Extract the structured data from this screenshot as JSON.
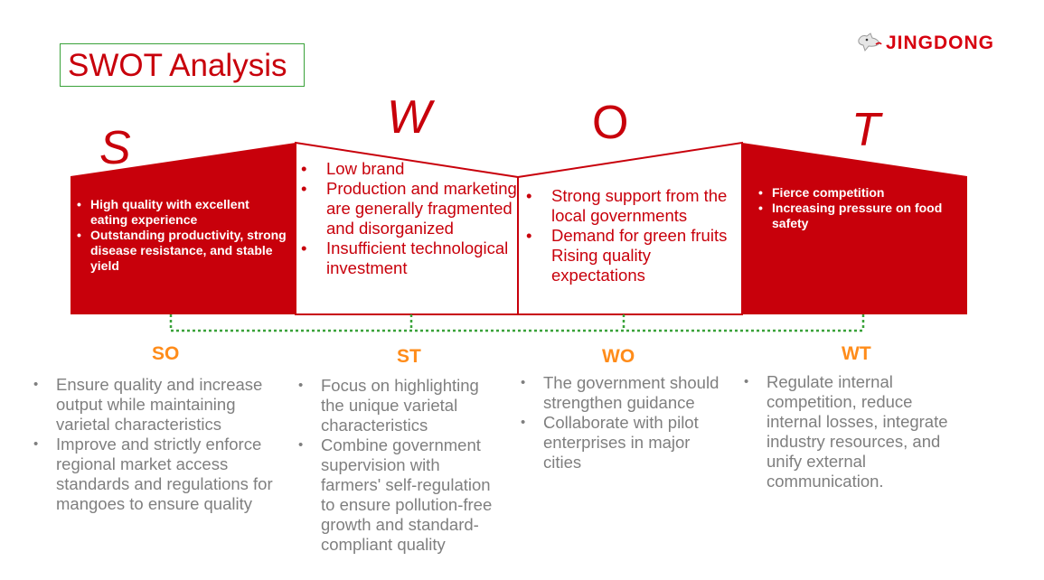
{
  "title": "SWOT Analysis",
  "brand": {
    "name": "JINGDONG",
    "logo_icon": "jd-dog-icon"
  },
  "letters": {
    "s": "S",
    "w": "W",
    "o": "O",
    "t": "T"
  },
  "strengths": [
    "High quality with excellent eating experience",
    "Outstanding productivity, strong disease resistance, and stable yield"
  ],
  "weaknesses": [
    "Low brand",
    "Production and marketing are generally fragmented and disorganized",
    "Insufficient technological investment"
  ],
  "opportunities": [
    "Strong support from the local governments",
    "Demand for green fruits Rising quality expectations"
  ],
  "threats": [
    "Fierce competition",
    "Increasing pressure on food safety"
  ],
  "strategies": {
    "so": {
      "label": "SO",
      "items": [
        "Ensure quality and increase output while maintaining varietal characteristics",
        "Improve and strictly enforce regional market access standards and regulations for mangoes to ensure quality"
      ]
    },
    "st": {
      "label": "ST",
      "items": [
        "Focus on highlighting the unique varietal characteristics",
        "Combine government supervision with farmers' self-regulation to ensure pollution-free growth and standard-compliant quality"
      ]
    },
    "wo": {
      "label": "WO",
      "items": [
        "The government should strengthen guidance",
        "Collaborate with pilot enterprises in major cities"
      ]
    },
    "wt": {
      "label": "WT",
      "items": [
        "Regulate internal competition, reduce internal losses, integrate industry resources, and unify external communication."
      ]
    }
  },
  "colors": {
    "red": "#c8000b",
    "orange": "#ff8c1a",
    "gray": "#7f7f7f",
    "green": "#3aa23a"
  }
}
